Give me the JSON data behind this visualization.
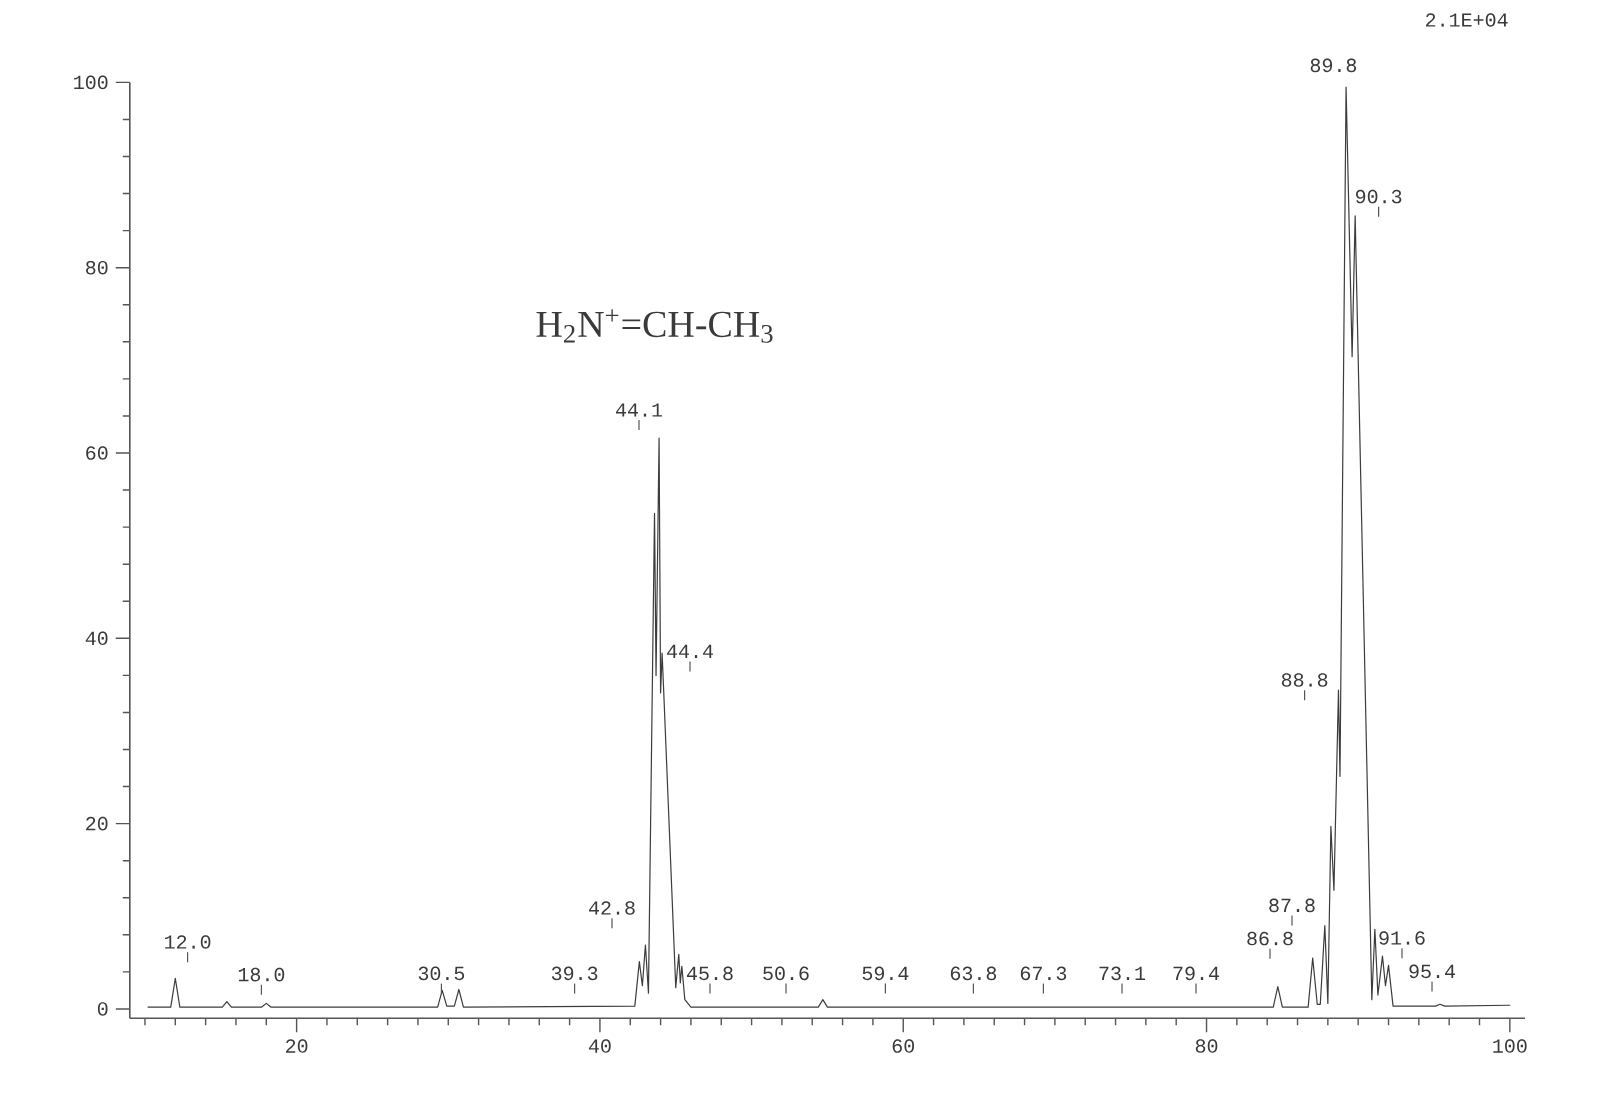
{
  "chart_data": {
    "type": "line",
    "color": "#3c3c3c",
    "x": [
      10.2,
      11.7,
      12.0,
      12.3,
      15.1,
      15.4,
      15.7,
      17.7,
      18.0,
      18.3,
      29.3,
      29.6,
      29.9,
      30.4,
      30.7,
      31.0,
      42.3,
      42.6,
      42.8,
      43.0,
      43.2,
      43.6,
      43.7,
      43.9,
      44.0,
      44.1,
      44.2,
      45.0,
      45.2,
      45.3,
      45.4,
      45.6,
      46.0,
      54.4,
      54.7,
      55.0,
      84.4,
      84.7,
      85.0,
      86.7,
      87.0,
      87.3,
      87.5,
      87.8,
      88.0,
      88.2,
      88.4,
      88.7,
      88.8,
      89.2,
      89.6,
      89.8,
      90.9,
      91.1,
      91.3,
      91.6,
      91.8,
      92.0,
      92.3,
      95.1,
      95.4,
      95.7,
      100.0
    ],
    "values": [
      0.2,
      0.2,
      3.3,
      0.2,
      0.2,
      0.8,
      0.2,
      0.2,
      0.6,
      0.2,
      0.2,
      2.0,
      0.3,
      0.3,
      2.1,
      0.2,
      0.3,
      5.1,
      2.5,
      6.9,
      1.7,
      53.5,
      36.0,
      61.6,
      34.1,
      38.4,
      34.5,
      2.3,
      5.9,
      2.8,
      4.6,
      1.0,
      0.2,
      0.2,
      1.0,
      0.2,
      0.2,
      2.4,
      0.2,
      0.2,
      5.5,
      0.5,
      0.5,
      9.0,
      0.6,
      19.7,
      12.8,
      34.4,
      25.1,
      99.5,
      70.4,
      85.6,
      1.0,
      8.6,
      1.5,
      5.7,
      2.5,
      4.7,
      0.3,
      0.3,
      0.5,
      0.3,
      0.4
    ],
    "xlim": [
      9,
      101
    ],
    "ylim": [
      -1,
      100
    ],
    "xticks": [
      {
        "value": 10,
        "label": null
      },
      {
        "value": 12,
        "label": null
      },
      {
        "value": 14,
        "label": null
      },
      {
        "value": 16,
        "label": null
      },
      {
        "value": 18,
        "label": null
      },
      20,
      {
        "value": 22,
        "label": null
      },
      {
        "value": 24,
        "label": null
      },
      {
        "value": 26,
        "label": null
      },
      {
        "value": 28,
        "label": null
      },
      {
        "value": 30,
        "label": null
      },
      {
        "value": 32,
        "label": null
      },
      {
        "value": 34,
        "label": null
      },
      {
        "value": 36,
        "label": null
      },
      {
        "value": 38,
        "label": null
      },
      40,
      {
        "value": 42,
        "label": null
      },
      {
        "value": 44,
        "label": null
      },
      {
        "value": 46,
        "label": null
      },
      {
        "value": 48,
        "label": null
      },
      {
        "value": 50,
        "label": null
      },
      {
        "value": 52,
        "label": null
      },
      {
        "value": 54,
        "label": null
      },
      {
        "value": 56,
        "label": null
      },
      {
        "value": 58,
        "label": null
      },
      60,
      {
        "value": 62,
        "label": null
      },
      {
        "value": 64,
        "label": null
      },
      {
        "value": 66,
        "label": null
      },
      {
        "value": 68,
        "label": null
      },
      {
        "value": 70,
        "label": null
      },
      {
        "value": 72,
        "label": null
      },
      {
        "value": 74,
        "label": null
      },
      {
        "value": 76,
        "label": null
      },
      {
        "value": 78,
        "label": null
      },
      80,
      {
        "value": 82,
        "label": null
      },
      {
        "value": 84,
        "label": null
      },
      {
        "value": 86,
        "label": null
      },
      {
        "value": 88,
        "label": null
      },
      {
        "value": 90,
        "label": null
      },
      {
        "value": 92,
        "label": null
      },
      {
        "value": 94,
        "label": null
      },
      {
        "value": 96,
        "label": null
      },
      {
        "value": 98,
        "label": null
      },
      100
    ],
    "yticks": [
      0,
      {
        "value": 4,
        "label": null
      },
      {
        "value": 8,
        "label": null
      },
      {
        "value": 12,
        "label": null
      },
      {
        "value": 16,
        "label": null
      },
      20,
      {
        "value": 24,
        "label": null
      },
      {
        "value": 28,
        "label": null
      },
      {
        "value": 32,
        "label": null
      },
      {
        "value": 36,
        "label": null
      },
      40,
      {
        "value": 44,
        "label": null
      },
      {
        "value": 48,
        "label": null
      },
      {
        "value": 52,
        "label": null
      },
      {
        "value": 56,
        "label": null
      },
      60,
      {
        "value": 64,
        "label": null
      },
      {
        "value": 68,
        "label": null
      },
      {
        "value": 72,
        "label": null
      },
      {
        "value": 76,
        "label": null
      },
      80,
      {
        "value": 84,
        "label": null
      },
      {
        "value": 88,
        "label": null
      },
      {
        "value": 92,
        "label": null
      },
      {
        "value": 96,
        "label": null
      },
      100
    ],
    "annotations": [
      "2.1E+04",
      "H$_{2}$N$^{+}$=CH-CH$_{3}$",
      "12.0",
      "18.0",
      "30.5",
      "39.3",
      "42.8",
      "44.1",
      "44.4",
      "45.8",
      "50.6",
      "59.4",
      "63.8",
      "67.3",
      "73.1",
      "79.4",
      "86.8",
      "87.8",
      "88.8",
      "89.8",
      "90.3",
      "91.6",
      "95.4"
    ]
  }
}
